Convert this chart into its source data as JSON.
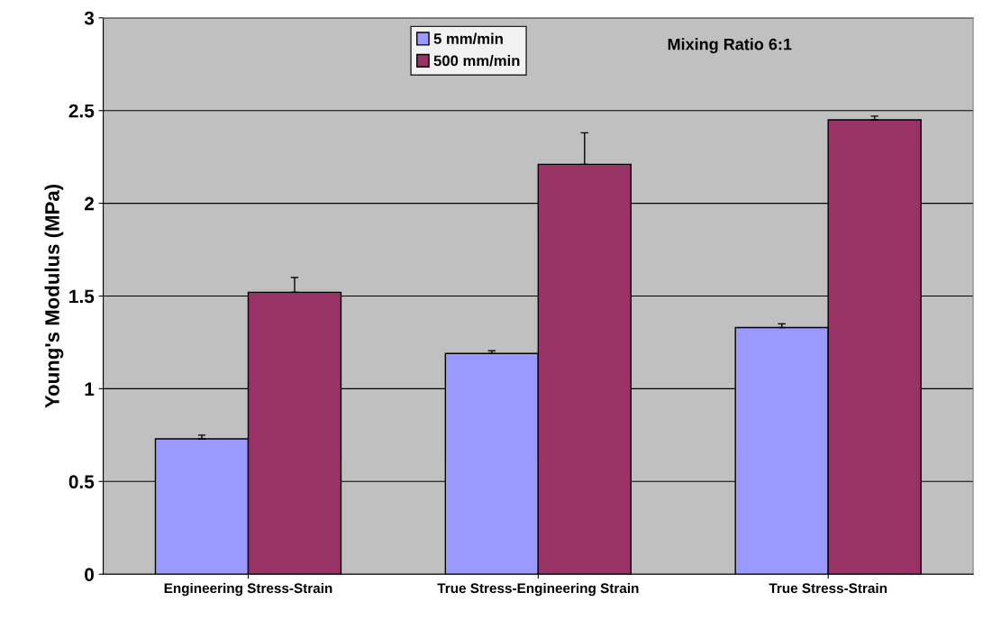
{
  "chart_data": {
    "type": "bar",
    "ylabel": "Young's Modulus (MPa)",
    "categories": [
      "Engineering Stress-Strain",
      "True Stress-Engineering Strain",
      "True Stress-Strain"
    ],
    "series": [
      {
        "name": "5 mm/min",
        "color": "#9999ff",
        "values": [
          0.73,
          1.19,
          1.33
        ],
        "errors": [
          [
            0.73,
            0.75
          ],
          [
            1.19,
            1.205
          ],
          [
            1.33,
            1.35
          ]
        ]
      },
      {
        "name": "500 mm/min",
        "color": "#993366",
        "values": [
          1.52,
          2.21,
          2.45
        ],
        "errors": [
          [
            1.52,
            1.6
          ],
          [
            2.21,
            2.38
          ],
          [
            2.45,
            2.47
          ]
        ]
      }
    ],
    "ylim": [
      0,
      3
    ],
    "yticks": [
      0,
      0.5,
      1,
      1.5,
      2,
      2.5,
      3
    ],
    "grid": "y",
    "legend": "top",
    "annotations": [
      "Mixing Ratio 6:1"
    ]
  }
}
